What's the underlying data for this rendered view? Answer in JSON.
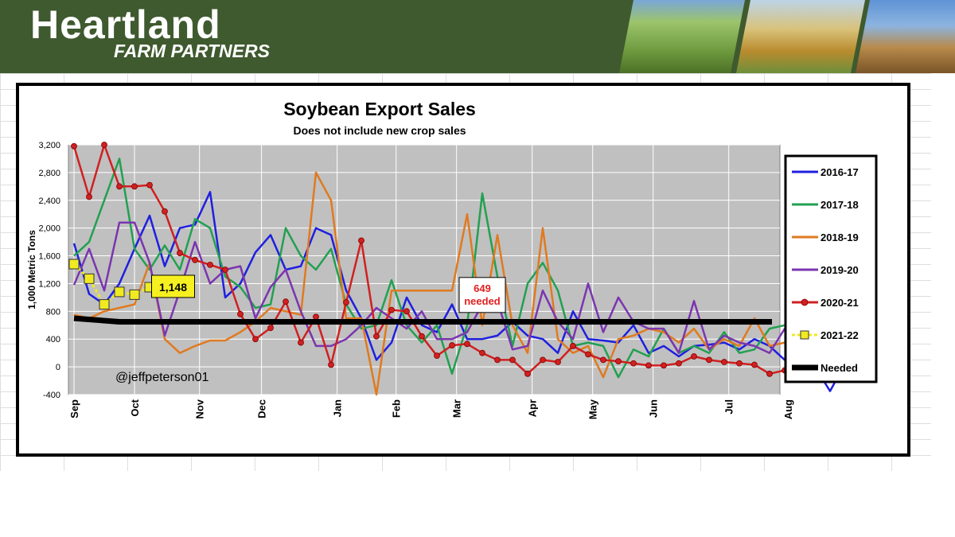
{
  "header": {
    "brand_title": "Heartland",
    "brand_subtitle": "FARM PARTNERS"
  },
  "watermark": "@jeffpeterson01",
  "colors": {
    "banner": "#3f5a2f",
    "plot_background": "#c0c0c0",
    "needed_line": "#000000"
  },
  "chart_data": {
    "type": "line",
    "title": "Soybean Export Sales",
    "subtitle": "Does not include new crop sales",
    "ylabel": "1,000 Metric Tons",
    "xlabel": "",
    "ylim": [
      -400,
      3200
    ],
    "yticks": [
      -400,
      0,
      400,
      800,
      1200,
      1600,
      2000,
      2400,
      2800,
      3200
    ],
    "ytick_labels": [
      "-400",
      "0",
      "400",
      "800",
      "1,200",
      "1,600",
      "2,000",
      "2,400",
      "2,800",
      "3,200"
    ],
    "week_count": 52,
    "months": [
      {
        "label": "Sep",
        "week": 0
      },
      {
        "label": "Oct",
        "week": 4
      },
      {
        "label": "Nov",
        "week": 8.3
      },
      {
        "label": "Dec",
        "week": 12.4
      },
      {
        "label": "Jan",
        "week": 17.4
      },
      {
        "label": "Feb",
        "week": 21.3
      },
      {
        "label": "Mar",
        "week": 25.3
      },
      {
        "label": "Apr",
        "week": 30.3
      },
      {
        "label": "May",
        "week": 34.3
      },
      {
        "label": "Jun",
        "week": 38.3
      },
      {
        "label": "Jul",
        "week": 43.3
      },
      {
        "label": "Aug",
        "week": 47.2
      }
    ],
    "grid": true,
    "legend_position": "right",
    "series": [
      {
        "name": "2016-17",
        "color": "#1f1fe0",
        "marker": "none",
        "values": [
          1780,
          1050,
          900,
          1200,
          1700,
          2180,
          1450,
          2000,
          2050,
          2520,
          1000,
          1200,
          1650,
          1900,
          1400,
          1450,
          2000,
          1900,
          1100,
          700,
          100,
          350,
          1000,
          600,
          500,
          900,
          400,
          400,
          450,
          650,
          450,
          400,
          200,
          800,
          400,
          380,
          350,
          600,
          200,
          300,
          150,
          300,
          320,
          350,
          250,
          400,
          300,
          100,
          200,
          0,
          -350,
          50
        ]
      },
      {
        "name": "2017-18",
        "color": "#22a050",
        "marker": "none",
        "values": [
          1600,
          1800,
          2400,
          3000,
          1700,
          1400,
          1750,
          1400,
          2130,
          2000,
          1300,
          1150,
          850,
          900,
          2000,
          1600,
          1400,
          1700,
          900,
          550,
          600,
          1250,
          600,
          350,
          600,
          -100,
          600,
          2500,
          1300,
          300,
          1200,
          1500,
          1100,
          300,
          350,
          300,
          -150,
          250,
          150,
          550,
          200,
          300,
          200,
          500,
          200,
          250,
          550,
          600,
          550,
          250,
          600,
          650
        ]
      },
      {
        "name": "2018-19",
        "color": "#e07a20",
        "marker": "none",
        "values": [
          750,
          700,
          800,
          850,
          900,
          1500,
          400,
          200,
          300,
          380,
          380,
          500,
          650,
          850,
          800,
          750,
          2800,
          2400,
          700,
          700,
          -400,
          1100,
          1100,
          1100,
          1100,
          1100,
          2200,
          600,
          1900,
          600,
          200,
          2000,
          400,
          200,
          300,
          -150,
          400,
          450,
          550,
          500,
          350,
          550,
          250,
          400,
          300,
          700,
          300,
          350,
          500,
          550,
          700,
          650
        ]
      },
      {
        "name": "2019-20",
        "color": "#7b35b0",
        "marker": "none",
        "values": [
          1180,
          1700,
          1100,
          2080,
          2080,
          1500,
          450,
          1100,
          1800,
          1200,
          1400,
          1450,
          700,
          1150,
          1400,
          800,
          300,
          300,
          400,
          600,
          850,
          700,
          550,
          800,
          400,
          400,
          500,
          900,
          950,
          250,
          300,
          1100,
          650,
          400,
          1200,
          500,
          1000,
          650,
          550,
          550,
          200,
          950,
          250,
          450,
          350,
          300,
          200,
          550,
          500,
          400,
          350,
          300
        ]
      },
      {
        "name": "2020-21",
        "color": "#d02020",
        "marker": "circle",
        "values": [
          3180,
          2450,
          3200,
          2600,
          2600,
          2620,
          2240,
          1640,
          1540,
          1470,
          1400,
          760,
          400,
          560,
          940,
          350,
          720,
          30,
          930,
          1820,
          440,
          820,
          800,
          440,
          160,
          310,
          330,
          200,
          100,
          100,
          -100,
          100,
          70,
          300,
          180,
          100,
          80,
          50,
          20,
          20,
          50,
          150,
          100,
          70,
          50,
          30,
          -100,
          -50
        ]
      },
      {
        "name": "2021-22",
        "color": "#f0ea20",
        "marker": "square",
        "values": [
          1480,
          1270,
          900,
          1080,
          1040,
          1148
        ]
      },
      {
        "name": "Needed",
        "color": "#000000",
        "marker": "none",
        "values": [
          700,
          649,
          649
        ]
      }
    ],
    "annotations": [
      {
        "text": "1,148",
        "week": 6.5,
        "value": 1148
      },
      {
        "text": "649",
        "text2": "needed",
        "week": 27,
        "value": 649
      }
    ]
  }
}
